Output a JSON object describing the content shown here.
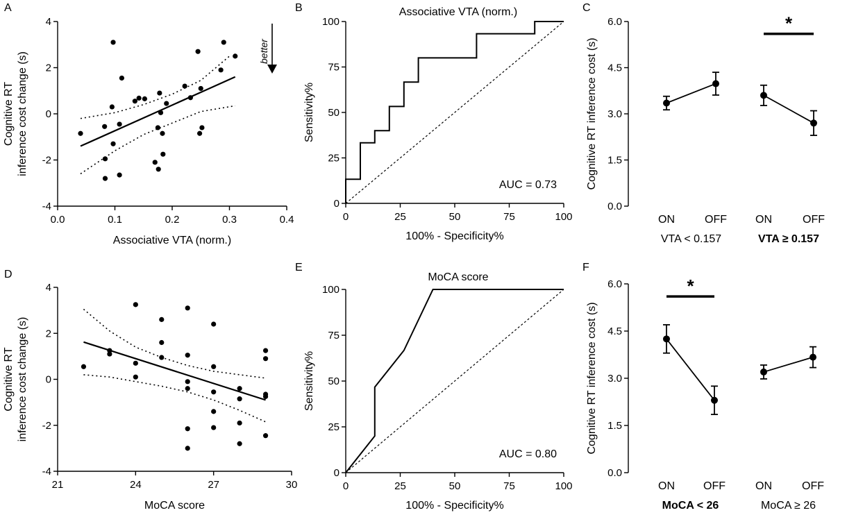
{
  "panel_labels": [
    "A",
    "B",
    "C",
    "D",
    "E",
    "F"
  ],
  "chart_data": [
    {
      "type": "scatter",
      "panel": "A",
      "xlabel": "Associative VTA (norm.)",
      "ylabel_lines": [
        "Cognitive RT",
        "inference cost change (s)"
      ],
      "xlim": [
        0.0,
        0.4
      ],
      "ylim": [
        -4,
        4
      ],
      "xticks": [
        "0.0",
        "0.1",
        "0.2",
        "0.3",
        "0.4"
      ],
      "yticks": [
        "-4",
        "-2",
        "0",
        "2",
        "4"
      ],
      "annotation": "better",
      "points": [
        [
          0.04,
          -0.85
        ],
        [
          0.082,
          -0.55
        ],
        [
          0.083,
          -1.95
        ],
        [
          0.083,
          -2.8
        ],
        [
          0.095,
          0.3
        ],
        [
          0.097,
          3.1
        ],
        [
          0.097,
          -1.3
        ],
        [
          0.108,
          -0.45
        ],
        [
          0.108,
          -2.65
        ],
        [
          0.112,
          1.55
        ],
        [
          0.135,
          0.55
        ],
        [
          0.142,
          0.68
        ],
        [
          0.152,
          0.65
        ],
        [
          0.17,
          -2.1
        ],
        [
          0.175,
          -0.6
        ],
        [
          0.176,
          -2.4
        ],
        [
          0.178,
          0.9
        ],
        [
          0.18,
          0.05
        ],
        [
          0.183,
          -0.85
        ],
        [
          0.184,
          -1.75
        ],
        [
          0.19,
          0.45
        ],
        [
          0.222,
          1.2
        ],
        [
          0.232,
          0.7
        ],
        [
          0.245,
          2.7
        ],
        [
          0.248,
          -0.85
        ],
        [
          0.25,
          1.1
        ],
        [
          0.252,
          -0.6
        ],
        [
          0.285,
          1.9
        ],
        [
          0.29,
          3.1
        ],
        [
          0.31,
          2.5
        ]
      ],
      "fit": {
        "x": [
          0.04,
          0.31
        ],
        "y": [
          -1.4,
          1.6
        ]
      },
      "ci_upper": [
        [
          0.04,
          -0.2
        ],
        [
          0.1,
          0.05
        ],
        [
          0.15,
          0.4
        ],
        [
          0.2,
          0.85
        ],
        [
          0.25,
          1.45
        ],
        [
          0.3,
          2.5
        ]
      ],
      "ci_lower": [
        [
          0.04,
          -2.6
        ],
        [
          0.1,
          -1.6
        ],
        [
          0.15,
          -0.9
        ],
        [
          0.2,
          -0.4
        ],
        [
          0.25,
          0.1
        ],
        [
          0.31,
          0.35
        ]
      ]
    },
    {
      "type": "line",
      "panel": "B",
      "title": "Associative VTA (norm.)",
      "xlabel": "100% - Specificity%",
      "ylabel": "Sensitivity%",
      "xlim": [
        0,
        100
      ],
      "ylim": [
        0,
        100
      ],
      "xticks": [
        "0",
        "25",
        "50",
        "75",
        "100"
      ],
      "yticks": [
        "0",
        "25",
        "50",
        "75",
        "100"
      ],
      "annotation": "AUC = 0.73",
      "roc": [
        [
          0,
          0
        ],
        [
          0,
          13.3
        ],
        [
          6.7,
          13.3
        ],
        [
          6.7,
          33.3
        ],
        [
          13.3,
          33.3
        ],
        [
          13.3,
          40
        ],
        [
          20,
          40
        ],
        [
          20,
          53.3
        ],
        [
          26.7,
          53.3
        ],
        [
          26.7,
          66.7
        ],
        [
          33.3,
          66.7
        ],
        [
          33.3,
          80
        ],
        [
          60,
          80
        ],
        [
          60,
          93.3
        ],
        [
          86.7,
          93.3
        ],
        [
          86.7,
          100
        ],
        [
          100,
          100
        ]
      ]
    },
    {
      "type": "line",
      "panel": "C",
      "ylabel": "Cognitive RT inference cost (s)",
      "ylim": [
        0,
        6
      ],
      "yticks": [
        "0.0",
        "1.5",
        "3.0",
        "4.5",
        "6.0"
      ],
      "categories": [
        "ON",
        "OFF",
        "ON",
        "OFF"
      ],
      "groups": [
        {
          "label": "VTA < 0.157",
          "bold": false,
          "mean": [
            3.35,
            3.98
          ],
          "err": [
            0.22,
            0.37
          ]
        },
        {
          "label": "VTA ≥ 0.157",
          "bold": true,
          "mean": [
            3.6,
            2.7
          ],
          "err": [
            0.33,
            0.4
          ]
        }
      ],
      "significance": {
        "symbol": "*",
        "group": 1,
        "y": 5.6
      }
    },
    {
      "type": "scatter",
      "panel": "D",
      "xlabel": "MoCA score",
      "ylabel_lines": [
        "Cognitive RT",
        "inference cost change (s)"
      ],
      "xlim": [
        21,
        30
      ],
      "ylim": [
        -4,
        4
      ],
      "xticks": [
        "21",
        "24",
        "27",
        "30"
      ],
      "yticks": [
        "-4",
        "-2",
        "0",
        "2",
        "4"
      ],
      "points": [
        [
          22,
          0.55
        ],
        [
          23,
          1.25
        ],
        [
          23,
          1.1
        ],
        [
          24,
          3.25
        ],
        [
          24,
          0.7
        ],
        [
          24,
          0.1
        ],
        [
          25,
          2.6
        ],
        [
          25,
          1.6
        ],
        [
          25,
          0.95
        ],
        [
          26,
          3.1
        ],
        [
          26,
          1.05
        ],
        [
          26,
          -0.1
        ],
        [
          26,
          -0.4
        ],
        [
          26,
          -2.15
        ],
        [
          26,
          -3.0
        ],
        [
          27,
          2.4
        ],
        [
          27,
          0.55
        ],
        [
          27,
          -0.55
        ],
        [
          27,
          -1.4
        ],
        [
          27,
          -2.1
        ],
        [
          28,
          -0.4
        ],
        [
          28,
          -0.85
        ],
        [
          28,
          -1.9
        ],
        [
          28,
          -2.8
        ],
        [
          29,
          1.25
        ],
        [
          29,
          0.9
        ],
        [
          29,
          -0.65
        ],
        [
          29,
          -0.75
        ],
        [
          29,
          -2.45
        ]
      ],
      "fit": {
        "x": [
          22,
          29
        ],
        "y": [
          1.62,
          -0.9
        ]
      },
      "ci_upper": [
        [
          22,
          3.05
        ],
        [
          23,
          2.1
        ],
        [
          24,
          1.4
        ],
        [
          25,
          0.95
        ],
        [
          26,
          0.6
        ],
        [
          27,
          0.35
        ],
        [
          28,
          0.2
        ],
        [
          29,
          0.05
        ]
      ],
      "ci_lower": [
        [
          22,
          0.2
        ],
        [
          23,
          0.1
        ],
        [
          24,
          -0.1
        ],
        [
          25,
          -0.3
        ],
        [
          26,
          -0.55
        ],
        [
          27,
          -0.9
        ],
        [
          28,
          -1.35
        ],
        [
          29,
          -1.85
        ]
      ]
    },
    {
      "type": "line",
      "panel": "E",
      "title": "MoCA score",
      "xlabel": "100% - Specificity%",
      "ylabel": "Sensitivity%",
      "xlim": [
        0,
        100
      ],
      "ylim": [
        0,
        100
      ],
      "xticks": [
        "0",
        "25",
        "50",
        "75",
        "100"
      ],
      "yticks": [
        "0",
        "25",
        "50",
        "75",
        "100"
      ],
      "annotation": "AUC = 0.80",
      "roc": [
        [
          0,
          0
        ],
        [
          13.3,
          20
        ],
        [
          13.3,
          46.7
        ],
        [
          26.7,
          66.7
        ],
        [
          40,
          100
        ],
        [
          100,
          100
        ]
      ]
    },
    {
      "type": "line",
      "panel": "F",
      "ylabel": "Cognitive RT inference cost (s)",
      "ylim": [
        0,
        6
      ],
      "yticks": [
        "0.0",
        "1.5",
        "3.0",
        "4.5",
        "6.0"
      ],
      "categories": [
        "ON",
        "OFF",
        "ON",
        "OFF"
      ],
      "groups": [
        {
          "label": "MoCA < 26",
          "bold": true,
          "mean": [
            4.25,
            2.3
          ],
          "err": [
            0.45,
            0.45
          ]
        },
        {
          "label": "MoCA ≥ 26",
          "bold": false,
          "mean": [
            3.2,
            3.67
          ],
          "err": [
            0.22,
            0.33
          ]
        }
      ],
      "significance": {
        "symbol": "*",
        "group": 0,
        "y": 5.6
      }
    }
  ]
}
